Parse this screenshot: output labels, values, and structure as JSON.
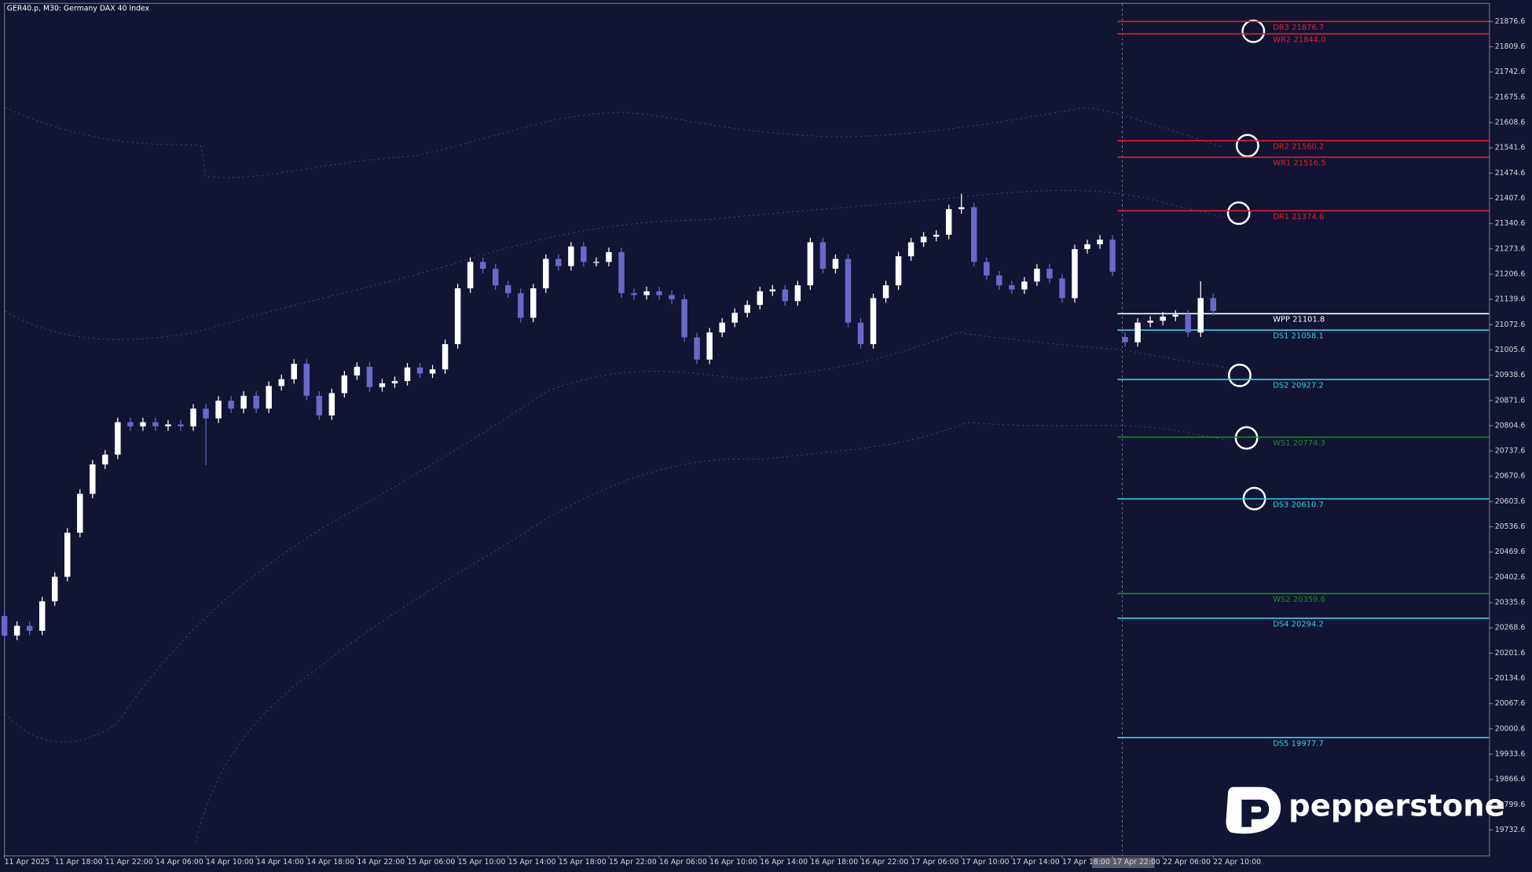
{
  "chart_data": {
    "type": "candlestick",
    "title": "GER40.p, M30:  Germany DAX 40 Index",
    "logo": "pepperstone",
    "up_color": "#ffffff",
    "down_color": "#6a68c8",
    "categories": [
      "11 Apr 2025",
      null,
      null,
      null,
      "11 Apr 18:00",
      null,
      null,
      null,
      "11 Apr 22:00",
      null,
      null,
      null,
      "14 Apr 06:00",
      null,
      null,
      null,
      "14 Apr 10:00",
      null,
      null,
      null,
      "14 Apr 14:00",
      null,
      null,
      null,
      "14 Apr 18:00",
      null,
      null,
      null,
      "14 Apr 22:00",
      null,
      null,
      null,
      "15 Apr 06:00",
      null,
      null,
      null,
      "15 Apr 10:00",
      null,
      null,
      null,
      "15 Apr 14:00",
      null,
      null,
      null,
      "15 Apr 18:00",
      null,
      null,
      null,
      "15 Apr 22:00",
      null,
      null,
      null,
      "16 Apr 06:00",
      null,
      null,
      null,
      "16 Apr 10:00",
      null,
      null,
      null,
      "16 Apr 14:00",
      null,
      null,
      null,
      "16 Apr 18:00",
      null,
      null,
      null,
      "16 Apr 22:00",
      null,
      null,
      null,
      "17 Apr 06:00",
      null,
      null,
      null,
      "17 Apr 10:00",
      null,
      null,
      null,
      "17 Apr 14:00",
      null,
      null,
      null,
      "17 Apr 18:00",
      null,
      null,
      null,
      "17 Apr 22:00",
      null,
      null,
      null,
      "22 Apr 06:00",
      null,
      null,
      null,
      "22 Apr 10:00"
    ],
    "open": [
      20300,
      20248,
      20274,
      20261,
      20339,
      20404,
      20521,
      20624,
      20702,
      20728,
      20814,
      20803,
      20814,
      20803,
      20808,
      20803,
      20850,
      20824,
      20871,
      20850,
      20884,
      20850,
      20910,
      20928,
      20969,
      20884,
      20832,
      20891,
      20938,
      20961,
      20907,
      20917,
      20923,
      20959,
      20943,
      20954,
      21021,
      21169,
      21239,
      21221,
      21177,
      21156,
      21091,
      21169,
      21247,
      21228,
      21280,
      21239,
      21239,
      21265,
      21156,
      21151,
      21161,
      21151,
      21140,
      21039,
      20980,
      21052,
      21078,
      21104,
      21125,
      21161,
      21166,
      21135,
      21177,
      21291,
      21221,
      21247,
      21078,
      21021,
      21143,
      21177,
      21254,
      21291,
      21306,
      21311,
      21379,
      21384,
      21239,
      21203,
      21177,
      21166,
      21187,
      21221,
      21195,
      21143,
      21273,
      21286,
      21298,
      21040,
      21026,
      21078,
      21083,
      21094,
      21099,
      21052,
      21143
    ],
    "high": [
      20312,
      20286,
      20286,
      20351,
      20416,
      20533,
      20636,
      20714,
      20740,
      20826,
      20826,
      20826,
      20826,
      20820,
      20820,
      20862,
      20862,
      20883,
      20883,
      20896,
      20896,
      20922,
      20940,
      20981,
      20981,
      20896,
      20903,
      20950,
      20973,
      20973,
      20929,
      20935,
      20971,
      20971,
      20966,
      21033,
      21181,
      21251,
      21251,
      21233,
      21189,
      21168,
      21181,
      21259,
      21259,
      21292,
      21292,
      21251,
      21277,
      21277,
      21168,
      21173,
      21173,
      21163,
      21152,
      21051,
      21064,
      21090,
      21116,
      21137,
      21173,
      21178,
      21178,
      21189,
      21303,
      21303,
      21259,
      21259,
      21090,
      21155,
      21189,
      21266,
      21303,
      21318,
      21323,
      21391,
      21420,
      21396,
      21251,
      21215,
      21189,
      21199,
      21233,
      21233,
      21207,
      21285,
      21298,
      21310,
      21310,
      21052,
      21090,
      21095,
      21106,
      21111,
      21111,
      21188,
      21155
    ],
    "low": [
      20236,
      20236,
      20249,
      20249,
      20327,
      20392,
      20509,
      20612,
      20690,
      20716,
      20791,
      20791,
      20791,
      20791,
      20791,
      20791,
      20700,
      20812,
      20838,
      20838,
      20838,
      20838,
      20898,
      20916,
      20872,
      20820,
      20820,
      20879,
      20926,
      20895,
      20895,
      20905,
      20911,
      20931,
      20931,
      20942,
      21009,
      21157,
      21209,
      21165,
      21144,
      21079,
      21079,
      21157,
      21216,
      21216,
      21227,
      21227,
      21227,
      21144,
      21139,
      21139,
      21139,
      21128,
      21027,
      20968,
      20968,
      21040,
      21066,
      21092,
      21113,
      21149,
      21123,
      21123,
      21165,
      21209,
      21209,
      21066,
      21009,
      21009,
      21131,
      21165,
      21242,
      21279,
      21294,
      21299,
      21367,
      21227,
      21191,
      21165,
      21154,
      21154,
      21175,
      21183,
      21131,
      21131,
      21261,
      21274,
      21201,
      21014,
      21014,
      21066,
      21071,
      21082,
      21040,
      21040,
      21097
    ],
    "close": [
      20248,
      20274,
      20261,
      20339,
      20404,
      20521,
      20624,
      20702,
      20728,
      20814,
      20803,
      20814,
      20803,
      20808,
      20803,
      20850,
      20824,
      20871,
      20850,
      20884,
      20850,
      20910,
      20928,
      20969,
      20884,
      20832,
      20891,
      20938,
      20961,
      20907,
      20917,
      20923,
      20959,
      20943,
      20954,
      21021,
      21169,
      21239,
      21221,
      21177,
      21156,
      21091,
      21169,
      21247,
      21228,
      21280,
      21239,
      21239,
      21265,
      21156,
      21151,
      21161,
      21151,
      21140,
      21039,
      20980,
      21052,
      21078,
      21104,
      21125,
      21161,
      21166,
      21135,
      21177,
      21291,
      21221,
      21247,
      21078,
      21021,
      21143,
      21177,
      21254,
      21291,
      21306,
      21311,
      21379,
      21384,
      21239,
      21203,
      21177,
      21166,
      21187,
      21221,
      21195,
      21143,
      21273,
      21286,
      21298,
      21213,
      21026,
      21078,
      21083,
      21094,
      21099,
      21052,
      21143,
      21109
    ],
    "ylim": [
      19665.2,
      21933.6
    ],
    "yticks": [
      21876.6,
      21809.6,
      21742.6,
      21675.6,
      21608.6,
      21541.6,
      21474.6,
      21407.6,
      21340.6,
      21273.6,
      21206.6,
      21139.6,
      21072.6,
      21005.6,
      20938.6,
      20871.6,
      20804.6,
      20737.6,
      20670.6,
      20603.6,
      20536.6,
      20469.6,
      20402.6,
      20335.6,
      20268.6,
      20201.6,
      20134.6,
      20067.6,
      20000.6,
      19933.6,
      19866.6,
      19799.6,
      19732.6
    ],
    "levels": [
      {
        "name": "DR3",
        "value": 21876.7,
        "value_label": "21876.7",
        "color": "#e0202a"
      },
      {
        "name": "WR2",
        "value": 21844.0,
        "value_label": "21844.0",
        "color": "#e0202a"
      },
      {
        "name": "DR2",
        "value": 21560.2,
        "value_label": "21560.2",
        "color": "#e0202a"
      },
      {
        "name": "WR1",
        "value": 21516.5,
        "value_label": "21516.5",
        "color": "#e0202a"
      },
      {
        "name": "DR1",
        "value": 21374.6,
        "value_label": "21374.6",
        "color": "#e0202a"
      },
      {
        "name": "WPP",
        "value": 21101.8,
        "value_label": "21101.8",
        "color": "#ffffff"
      },
      {
        "name": "DS1",
        "value": 21058.1,
        "value_label": "21058.1",
        "color": "#35d2e8"
      },
      {
        "name": "DS2",
        "value": 20927.2,
        "value_label": "20927.2",
        "color": "#35d2e8"
      },
      {
        "name": "WS1",
        "value": 20774.3,
        "value_label": "20774.3",
        "color": "#1e8a2a"
      },
      {
        "name": "DS3",
        "value": 20610.7,
        "value_label": "20610.7",
        "color": "#35d2e8"
      },
      {
        "name": "WS2",
        "value": 20359.6,
        "value_label": "20359.6",
        "color": "#1e8a2a"
      },
      {
        "name": "DS4",
        "value": 20294.2,
        "value_label": "20294.2",
        "color": "#35d2e8"
      },
      {
        "name": "DS5",
        "value": 19977.7,
        "value_label": "19977.7",
        "color": "#35d2e8"
      }
    ]
  }
}
